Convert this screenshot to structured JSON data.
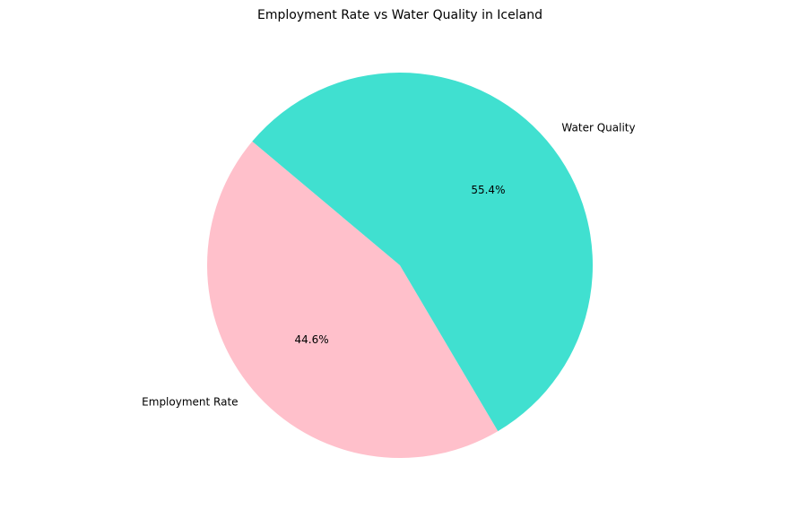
{
  "chart_data": {
    "type": "pie",
    "title": "Employment Rate vs Water Quality in Iceland",
    "categories": [
      "Employment Rate",
      "Water Quality"
    ],
    "values": [
      44.6,
      55.4
    ],
    "percent_labels": [
      "44.6%",
      "55.4%"
    ],
    "colors": [
      "#ffc0cb",
      "#40e0d0"
    ],
    "start_angle_deg": 140,
    "direction": "counterclockwise",
    "legend": "none"
  }
}
